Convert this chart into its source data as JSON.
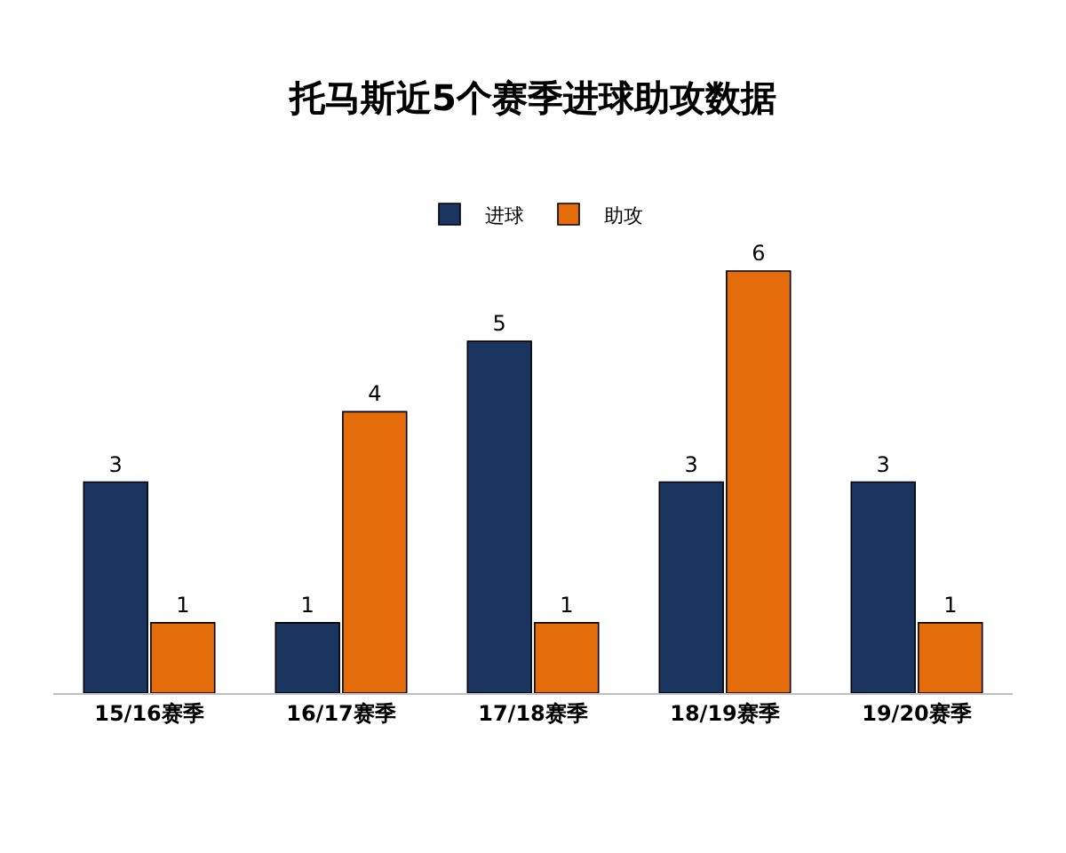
{
  "chart_data": {
    "type": "bar",
    "title": "托马斯近5个赛季进球助攻数据",
    "categories": [
      "15/16赛季",
      "16/17赛季",
      "17/18赛季",
      "18/19赛季",
      "19/20赛季"
    ],
    "series": [
      {
        "name": "进球",
        "color": "#1b3561",
        "values": [
          3,
          1,
          5,
          3,
          3
        ]
      },
      {
        "name": "助攻",
        "color": "#e46c0a",
        "values": [
          1,
          4,
          1,
          6,
          1
        ]
      }
    ],
    "data_labels": true,
    "legend": "top",
    "tick_labels": "x"
  }
}
